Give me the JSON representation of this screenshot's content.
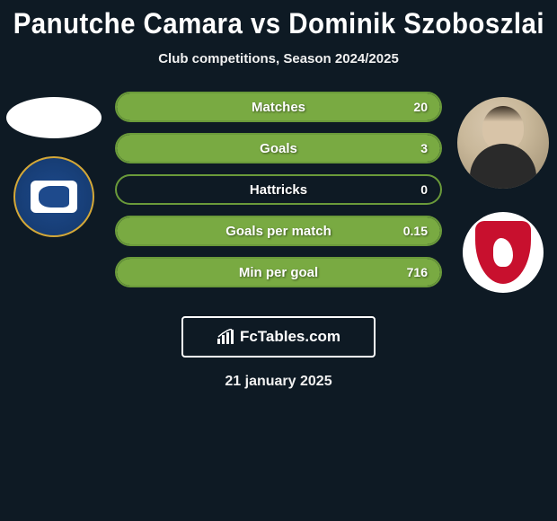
{
  "title": "Panutche Camara vs Dominik Szoboszlai",
  "subtitle": "Club competitions, Season 2024/2025",
  "date": "21 january 2025",
  "brand": "FcTables.com",
  "colors": {
    "background": "#0e1a24",
    "bar_border": "#6a9a3a",
    "bar_fill": "#79aa42",
    "text": "#ffffff"
  },
  "stats": [
    {
      "label": "Matches",
      "right_value": "20",
      "fill_pct": 100
    },
    {
      "label": "Goals",
      "right_value": "3",
      "fill_pct": 100
    },
    {
      "label": "Hattricks",
      "right_value": "0",
      "fill_pct": 0
    },
    {
      "label": "Goals per match",
      "right_value": "0.15",
      "fill_pct": 100
    },
    {
      "label": "Min per goal",
      "right_value": "716",
      "fill_pct": 100
    }
  ],
  "left_player": {
    "name": "Panutche Camara",
    "club": "Ipswich Town"
  },
  "right_player": {
    "name": "Dominik Szoboszlai",
    "club": "Liverpool"
  }
}
